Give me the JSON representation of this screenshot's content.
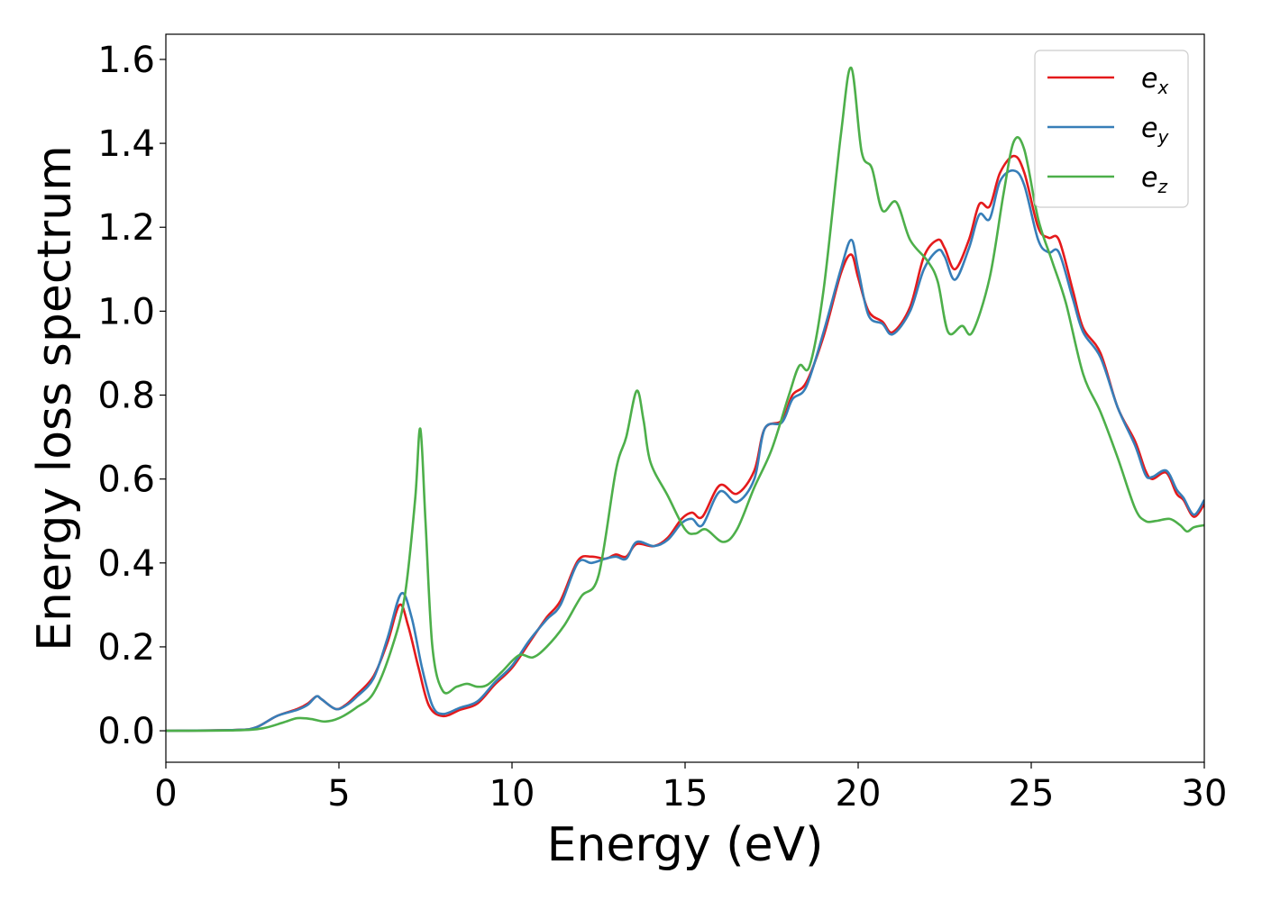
{
  "chart_data": {
    "type": "line",
    "xlabel": "Energy (eV)",
    "ylabel": "Energy loss spectrum",
    "xlim": [
      0,
      30
    ],
    "ylim": [
      -0.075,
      1.66
    ],
    "x_ticks": [
      0,
      5,
      10,
      15,
      20,
      25,
      30
    ],
    "y_ticks": [
      0.0,
      0.2,
      0.4,
      0.6,
      0.8,
      1.0,
      1.2,
      1.4,
      1.6
    ],
    "x_tick_labels": [
      "0",
      "5",
      "10",
      "15",
      "20",
      "25",
      "30"
    ],
    "y_tick_labels": [
      "0.0",
      "0.2",
      "0.4",
      "0.6",
      "0.8",
      "1.0",
      "1.2",
      "1.4",
      "1.6"
    ],
    "grid": false,
    "legend_position": "top-right",
    "series": [
      {
        "name": "e",
        "subscript": "x",
        "color": "#e41a1c",
        "points": [
          [
            0,
            0
          ],
          [
            2.0,
            0.002
          ],
          [
            2.6,
            0.008
          ],
          [
            3.2,
            0.035
          ],
          [
            3.8,
            0.052
          ],
          [
            4.1,
            0.065
          ],
          [
            4.35,
            0.082
          ],
          [
            4.5,
            0.075
          ],
          [
            4.9,
            0.052
          ],
          [
            5.2,
            0.062
          ],
          [
            5.5,
            0.085
          ],
          [
            6.0,
            0.13
          ],
          [
            6.4,
            0.21
          ],
          [
            6.75,
            0.3
          ],
          [
            7.0,
            0.25
          ],
          [
            7.3,
            0.15
          ],
          [
            7.6,
            0.06
          ],
          [
            8.0,
            0.035
          ],
          [
            8.5,
            0.05
          ],
          [
            9.0,
            0.065
          ],
          [
            9.5,
            0.11
          ],
          [
            10.0,
            0.15
          ],
          [
            10.5,
            0.21
          ],
          [
            11.0,
            0.27
          ],
          [
            11.4,
            0.31
          ],
          [
            11.9,
            0.405
          ],
          [
            12.3,
            0.415
          ],
          [
            12.7,
            0.41
          ],
          [
            13.0,
            0.42
          ],
          [
            13.3,
            0.415
          ],
          [
            13.6,
            0.445
          ],
          [
            14.1,
            0.44
          ],
          [
            14.5,
            0.46
          ],
          [
            14.9,
            0.505
          ],
          [
            15.2,
            0.52
          ],
          [
            15.5,
            0.51
          ],
          [
            16.0,
            0.585
          ],
          [
            16.5,
            0.565
          ],
          [
            17.0,
            0.62
          ],
          [
            17.3,
            0.72
          ],
          [
            17.8,
            0.74
          ],
          [
            18.1,
            0.8
          ],
          [
            18.5,
            0.83
          ],
          [
            19.0,
            0.94
          ],
          [
            19.5,
            1.09
          ],
          [
            19.8,
            1.135
          ],
          [
            20.0,
            1.08
          ],
          [
            20.3,
            1.0
          ],
          [
            20.7,
            0.975
          ],
          [
            21.0,
            0.95
          ],
          [
            21.5,
            1.01
          ],
          [
            21.9,
            1.13
          ],
          [
            22.3,
            1.17
          ],
          [
            22.5,
            1.15
          ],
          [
            22.8,
            1.1
          ],
          [
            23.2,
            1.17
          ],
          [
            23.5,
            1.255
          ],
          [
            23.8,
            1.25
          ],
          [
            24.1,
            1.33
          ],
          [
            24.5,
            1.37
          ],
          [
            24.8,
            1.33
          ],
          [
            25.2,
            1.2
          ],
          [
            25.5,
            1.175
          ],
          [
            25.8,
            1.17
          ],
          [
            26.2,
            1.05
          ],
          [
            26.5,
            0.96
          ],
          [
            27.0,
            0.9
          ],
          [
            27.5,
            0.77
          ],
          [
            28.0,
            0.69
          ],
          [
            28.3,
            0.62
          ],
          [
            28.5,
            0.6
          ],
          [
            28.9,
            0.615
          ],
          [
            29.2,
            0.565
          ],
          [
            29.4,
            0.55
          ],
          [
            29.7,
            0.51
          ],
          [
            30.0,
            0.54
          ]
        ]
      },
      {
        "name": "e",
        "subscript": "y",
        "color": "#377eb8",
        "points": [
          [
            0,
            0
          ],
          [
            2.0,
            0.002
          ],
          [
            2.6,
            0.008
          ],
          [
            3.2,
            0.035
          ],
          [
            3.8,
            0.05
          ],
          [
            4.1,
            0.062
          ],
          [
            4.35,
            0.082
          ],
          [
            4.5,
            0.075
          ],
          [
            4.9,
            0.052
          ],
          [
            5.2,
            0.06
          ],
          [
            5.5,
            0.08
          ],
          [
            6.0,
            0.125
          ],
          [
            6.4,
            0.22
          ],
          [
            6.8,
            0.327
          ],
          [
            7.1,
            0.27
          ],
          [
            7.4,
            0.15
          ],
          [
            7.7,
            0.06
          ],
          [
            8.0,
            0.04
          ],
          [
            8.5,
            0.055
          ],
          [
            9.0,
            0.07
          ],
          [
            9.5,
            0.115
          ],
          [
            10.0,
            0.155
          ],
          [
            10.5,
            0.215
          ],
          [
            11.0,
            0.265
          ],
          [
            11.4,
            0.3
          ],
          [
            11.9,
            0.4
          ],
          [
            12.3,
            0.4
          ],
          [
            12.7,
            0.41
          ],
          [
            13.0,
            0.415
          ],
          [
            13.3,
            0.41
          ],
          [
            13.6,
            0.45
          ],
          [
            14.1,
            0.44
          ],
          [
            14.5,
            0.455
          ],
          [
            14.9,
            0.495
          ],
          [
            15.2,
            0.505
          ],
          [
            15.5,
            0.49
          ],
          [
            16.0,
            0.57
          ],
          [
            16.5,
            0.545
          ],
          [
            17.0,
            0.6
          ],
          [
            17.3,
            0.72
          ],
          [
            17.8,
            0.735
          ],
          [
            18.1,
            0.79
          ],
          [
            18.5,
            0.82
          ],
          [
            19.0,
            0.95
          ],
          [
            19.5,
            1.1
          ],
          [
            19.8,
            1.17
          ],
          [
            20.0,
            1.1
          ],
          [
            20.3,
            0.99
          ],
          [
            20.7,
            0.97
          ],
          [
            21.0,
            0.945
          ],
          [
            21.5,
            1.0
          ],
          [
            21.9,
            1.1
          ],
          [
            22.3,
            1.145
          ],
          [
            22.5,
            1.13
          ],
          [
            22.8,
            1.075
          ],
          [
            23.2,
            1.15
          ],
          [
            23.5,
            1.23
          ],
          [
            23.8,
            1.22
          ],
          [
            24.1,
            1.31
          ],
          [
            24.5,
            1.335
          ],
          [
            24.8,
            1.3
          ],
          [
            25.2,
            1.17
          ],
          [
            25.5,
            1.14
          ],
          [
            25.8,
            1.14
          ],
          [
            26.2,
            1.03
          ],
          [
            26.5,
            0.95
          ],
          [
            27.0,
            0.89
          ],
          [
            27.5,
            0.77
          ],
          [
            28.0,
            0.68
          ],
          [
            28.3,
            0.61
          ],
          [
            28.5,
            0.605
          ],
          [
            28.9,
            0.62
          ],
          [
            29.2,
            0.575
          ],
          [
            29.4,
            0.555
          ],
          [
            29.7,
            0.515
          ],
          [
            30.0,
            0.55
          ]
        ]
      },
      {
        "name": "e",
        "subscript": "z",
        "color": "#4daf4a",
        "points": [
          [
            0,
            0
          ],
          [
            2.0,
            0.001
          ],
          [
            2.8,
            0.006
          ],
          [
            3.4,
            0.02
          ],
          [
            3.8,
            0.03
          ],
          [
            4.2,
            0.028
          ],
          [
            4.6,
            0.022
          ],
          [
            5.0,
            0.03
          ],
          [
            5.5,
            0.055
          ],
          [
            6.0,
            0.09
          ],
          [
            6.5,
            0.19
          ],
          [
            6.9,
            0.32
          ],
          [
            7.2,
            0.55
          ],
          [
            7.35,
            0.72
          ],
          [
            7.5,
            0.5
          ],
          [
            7.7,
            0.2
          ],
          [
            8.0,
            0.095
          ],
          [
            8.4,
            0.105
          ],
          [
            8.7,
            0.112
          ],
          [
            9.0,
            0.105
          ],
          [
            9.3,
            0.11
          ],
          [
            9.7,
            0.14
          ],
          [
            10.2,
            0.18
          ],
          [
            10.6,
            0.175
          ],
          [
            11.0,
            0.2
          ],
          [
            11.5,
            0.25
          ],
          [
            12.0,
            0.32
          ],
          [
            12.5,
            0.37
          ],
          [
            13.0,
            0.62
          ],
          [
            13.3,
            0.7
          ],
          [
            13.6,
            0.81
          ],
          [
            13.8,
            0.74
          ],
          [
            14.0,
            0.64
          ],
          [
            14.5,
            0.56
          ],
          [
            15.0,
            0.48
          ],
          [
            15.3,
            0.47
          ],
          [
            15.6,
            0.48
          ],
          [
            16.1,
            0.45
          ],
          [
            16.5,
            0.48
          ],
          [
            17.0,
            0.58
          ],
          [
            17.5,
            0.67
          ],
          [
            18.0,
            0.8
          ],
          [
            18.3,
            0.87
          ],
          [
            18.6,
            0.87
          ],
          [
            19.0,
            1.05
          ],
          [
            19.5,
            1.42
          ],
          [
            19.8,
            1.58
          ],
          [
            20.1,
            1.38
          ],
          [
            20.4,
            1.34
          ],
          [
            20.7,
            1.24
          ],
          [
            21.1,
            1.26
          ],
          [
            21.5,
            1.17
          ],
          [
            22.0,
            1.12
          ],
          [
            22.3,
            1.07
          ],
          [
            22.6,
            0.95
          ],
          [
            23.0,
            0.965
          ],
          [
            23.3,
            0.95
          ],
          [
            23.8,
            1.08
          ],
          [
            24.2,
            1.28
          ],
          [
            24.5,
            1.405
          ],
          [
            24.8,
            1.385
          ],
          [
            25.2,
            1.22
          ],
          [
            25.6,
            1.12
          ],
          [
            26.0,
            1.02
          ],
          [
            26.5,
            0.85
          ],
          [
            27.0,
            0.76
          ],
          [
            27.5,
            0.65
          ],
          [
            28.0,
            0.53
          ],
          [
            28.3,
            0.5
          ],
          [
            28.6,
            0.5
          ],
          [
            29.0,
            0.505
          ],
          [
            29.3,
            0.49
          ],
          [
            29.5,
            0.475
          ],
          [
            29.7,
            0.485
          ],
          [
            30.0,
            0.49
          ]
        ]
      }
    ]
  }
}
